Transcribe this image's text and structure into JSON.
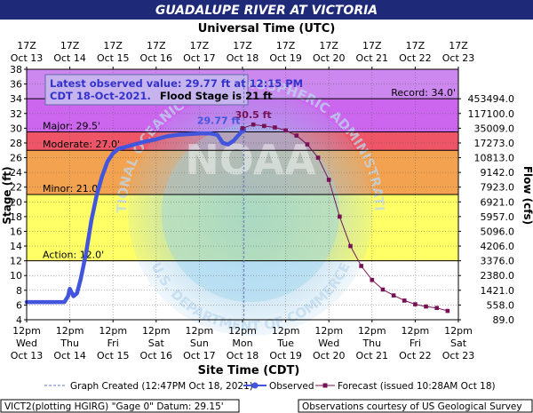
{
  "title": "GUADALUPE RIVER AT VICTORIA",
  "top_axis_title": "Universal Time (UTC)",
  "bottom_axis_title": "Site Time (CDT)",
  "info_box": {
    "line1": "Latest observed value: 29.77 ft at 12:15 PM",
    "line2_date": "CDT 18-Oct-2021.",
    "line2_flood": "Flood Stage is 21 ft"
  },
  "markers": {
    "observed_label": "29.77 ft",
    "forecast_peak_label": "30.5 ft"
  },
  "legend": {
    "created": "Graph Created (12:47PM Oct 18, 2021)",
    "observed": "Observed",
    "forecast": "Forecast (issued 10:28AM Oct 18)"
  },
  "footer": {
    "left": "VICT2(plotting HGIRG) \"Gage 0\" Datum: 29.15'",
    "right": "Observations courtesy of US Geological Survey"
  },
  "watermark": {
    "top": "NATIONAL OCEANIC AND ATMOSPHERIC ADMINISTRATION",
    "bottom": "U.S. DEPARTMENT OF COMMERCE",
    "center": "NOAA"
  },
  "colors": {
    "title_bg": "#1e2a78",
    "record_band": "#cc88ee",
    "major_band": "#cc66ee",
    "moderate_band": "#ee5566",
    "minor_band": "#f3a24f",
    "action_band": "#ffff66",
    "below_action": "#ffffff",
    "observed": "#4455dd",
    "forecast": "#771155",
    "info_box_bg": "#c7b4ef",
    "info_text": "#3333cc"
  },
  "chart_data": {
    "type": "line",
    "ylabel": "Stage (ft)",
    "y2label": "Flow (cfs)",
    "ylim": [
      4,
      38
    ],
    "yticks": [
      4,
      6,
      8,
      10,
      12,
      14,
      16,
      18,
      20,
      22,
      24,
      26,
      28,
      30,
      32,
      34,
      36,
      38
    ],
    "y2ticks": [
      {
        "stage": 34,
        "label": "453494.0"
      },
      {
        "stage": 32,
        "label": "117100.0"
      },
      {
        "stage": 30,
        "label": "35009.0"
      },
      {
        "stage": 28,
        "label": "17273.0"
      },
      {
        "stage": 26,
        "label": "10813.0"
      },
      {
        "stage": 24,
        "label": "9142.0"
      },
      {
        "stage": 22,
        "label": "7923.0"
      },
      {
        "stage": 20,
        "label": "6921.0"
      },
      {
        "stage": 18,
        "label": "5957.0"
      },
      {
        "stage": 16,
        "label": "5096.0"
      },
      {
        "stage": 14,
        "label": "4206.0"
      },
      {
        "stage": 12,
        "label": "3376.0"
      },
      {
        "stage": 10,
        "label": "2380.0"
      },
      {
        "stage": 8,
        "label": "1421.0"
      },
      {
        "stage": 6,
        "label": "558.0"
      },
      {
        "stage": 4,
        "label": "89.0"
      }
    ],
    "x_range": [
      "2021-10-13 12:00",
      "2021-10-23 12:00"
    ],
    "x_ticks_bottom": [
      {
        "time": "2021-10-13 12:00",
        "line1": "12pm",
        "line2": "Wed",
        "line3": "Oct 13"
      },
      {
        "time": "2021-10-14 12:00",
        "line1": "12pm",
        "line2": "Thu",
        "line3": "Oct 14"
      },
      {
        "time": "2021-10-15 12:00",
        "line1": "12pm",
        "line2": "Fri",
        "line3": "Oct 15"
      },
      {
        "time": "2021-10-16 12:00",
        "line1": "12pm",
        "line2": "Sat",
        "line3": "Oct 16"
      },
      {
        "time": "2021-10-17 12:00",
        "line1": "12pm",
        "line2": "Sun",
        "line3": "Oct 17"
      },
      {
        "time": "2021-10-18 12:00",
        "line1": "12pm",
        "line2": "Mon",
        "line3": "Oct 18"
      },
      {
        "time": "2021-10-19 12:00",
        "line1": "12pm",
        "line2": "Tue",
        "line3": "Oct 19"
      },
      {
        "time": "2021-10-20 12:00",
        "line1": "12pm",
        "line2": "Wed",
        "line3": "Oct 20"
      },
      {
        "time": "2021-10-21 12:00",
        "line1": "12pm",
        "line2": "Thu",
        "line3": "Oct 21"
      },
      {
        "time": "2021-10-22 12:00",
        "line1": "12pm",
        "line2": "Fri",
        "line3": "Oct 22"
      },
      {
        "time": "2021-10-23 12:00",
        "line1": "12pm",
        "line2": "Sat",
        "line3": "Oct 23"
      }
    ],
    "x_ticks_top": [
      {
        "time": "2021-10-13 12:00",
        "line1": "17Z",
        "line2": "Oct 13"
      },
      {
        "time": "2021-10-14 12:00",
        "line1": "17Z",
        "line2": "Oct 14"
      },
      {
        "time": "2021-10-15 12:00",
        "line1": "17Z",
        "line2": "Oct 15"
      },
      {
        "time": "2021-10-16 12:00",
        "line1": "17Z",
        "line2": "Oct 16"
      },
      {
        "time": "2021-10-17 12:00",
        "line1": "17Z",
        "line2": "Oct 17"
      },
      {
        "time": "2021-10-18 12:00",
        "line1": "17Z",
        "line2": "Oct 18"
      },
      {
        "time": "2021-10-19 12:00",
        "line1": "17Z",
        "line2": "Oct 19"
      },
      {
        "time": "2021-10-20 12:00",
        "line1": "17Z",
        "line2": "Oct 20"
      },
      {
        "time": "2021-10-21 12:00",
        "line1": "17Z",
        "line2": "Oct 21"
      },
      {
        "time": "2021-10-22 12:00",
        "line1": "17Z",
        "line2": "Oct 22"
      },
      {
        "time": "2021-10-23 12:00",
        "line1": "17Z",
        "line2": "Oct 23"
      }
    ],
    "flood_categories": [
      {
        "name": "Record",
        "label": "Record: 34.0'",
        "stage": 34.0
      },
      {
        "name": "Major",
        "label": "Major: 29.5'",
        "stage": 29.5
      },
      {
        "name": "Moderate",
        "label": "Moderate: 27.0'",
        "stage": 27.0
      },
      {
        "name": "Minor",
        "label": "Minor: 21.0'",
        "stage": 21.0
      },
      {
        "name": "Action",
        "label": "Action: 12.0'",
        "stage": 12.0
      }
    ],
    "graph_created": "2021-10-18 12:47",
    "series": [
      {
        "name": "Observed",
        "x": [
          "2021-10-13 12:00",
          "2021-10-13 18:00",
          "2021-10-14 00:00",
          "2021-10-14 06:00",
          "2021-10-14 09:00",
          "2021-10-14 11:00",
          "2021-10-14 12:00",
          "2021-10-14 14:00",
          "2021-10-14 16:00",
          "2021-10-14 18:00",
          "2021-10-14 21:00",
          "2021-10-15 00:00",
          "2021-10-15 03:00",
          "2021-10-15 06:00",
          "2021-10-15 09:00",
          "2021-10-15 12:00",
          "2021-10-15 15:00",
          "2021-10-15 18:00",
          "2021-10-15 21:00",
          "2021-10-16 00:00",
          "2021-10-16 06:00",
          "2021-10-16 12:00",
          "2021-10-16 18:00",
          "2021-10-17 00:00",
          "2021-10-17 06:00",
          "2021-10-17 12:00",
          "2021-10-17 18:00",
          "2021-10-17 22:00",
          "2021-10-18 01:00",
          "2021-10-18 04:00",
          "2021-10-18 07:00",
          "2021-10-18 10:00",
          "2021-10-18 12:15"
        ],
        "y": [
          6.4,
          6.4,
          6.4,
          6.4,
          6.4,
          7.2,
          8.2,
          7.2,
          7.6,
          9.5,
          13.0,
          17.5,
          21.0,
          23.5,
          25.5,
          26.6,
          27.2,
          27.4,
          27.6,
          27.8,
          28.2,
          28.5,
          28.9,
          29.1,
          29.2,
          29.3,
          29.3,
          29.1,
          28.0,
          27.8,
          28.3,
          29.1,
          29.77
        ]
      },
      {
        "name": "Forecast",
        "x": [
          "2021-10-18 12:00",
          "2021-10-18 18:00",
          "2021-10-19 00:00",
          "2021-10-19 06:00",
          "2021-10-19 12:00",
          "2021-10-19 18:00",
          "2021-10-20 00:00",
          "2021-10-20 06:00",
          "2021-10-20 12:00",
          "2021-10-20 18:00",
          "2021-10-21 00:00",
          "2021-10-21 06:00",
          "2021-10-21 12:00",
          "2021-10-21 18:00",
          "2021-10-22 00:00",
          "2021-10-22 06:00",
          "2021-10-22 12:00",
          "2021-10-22 18:00",
          "2021-10-23 00:00",
          "2021-10-23 06:00"
        ],
        "y": [
          30.0,
          30.5,
          30.3,
          30.1,
          29.7,
          29.0,
          27.8,
          26.0,
          23.0,
          18.0,
          14.0,
          11.3,
          9.4,
          8.1,
          7.3,
          6.6,
          6.1,
          5.8,
          5.6,
          5.2
        ]
      }
    ]
  }
}
